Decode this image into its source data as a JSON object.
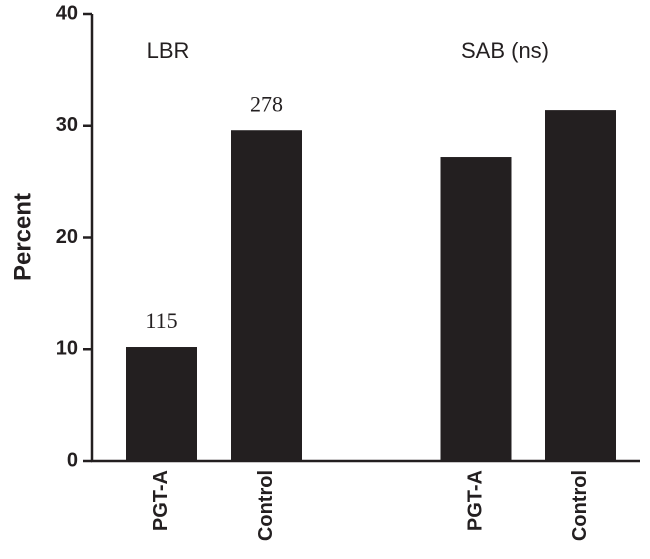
{
  "chart_data": {
    "type": "bar",
    "ylabel": "Percent",
    "categories": [
      "PGT-A",
      "Control",
      "PGT-A",
      "Control"
    ],
    "values": [
      10.2,
      29.6,
      27.2,
      31.4
    ],
    "color": "#231f20",
    "groups": [
      "LBR",
      "SAB (ns)"
    ],
    "annotations": [
      "115",
      "278"
    ],
    "ylim": [
      0,
      40
    ],
    "yticks": [
      0,
      10,
      20,
      30,
      40
    ],
    "grid": false
  }
}
